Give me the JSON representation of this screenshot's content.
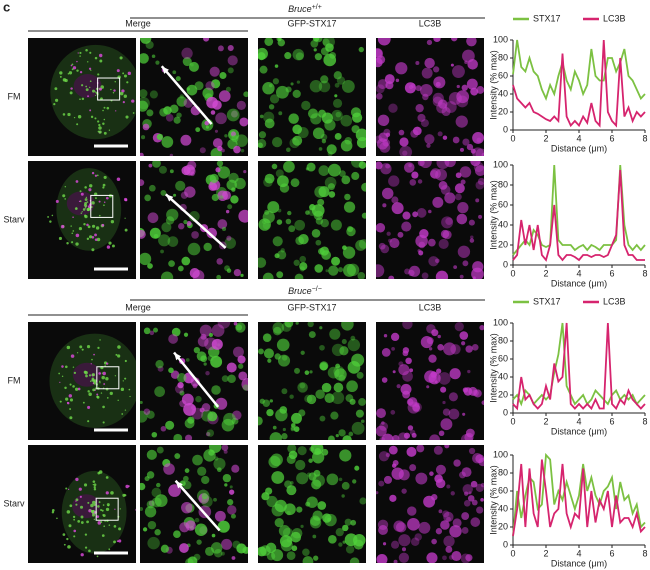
{
  "figure": {
    "panel_label": "c",
    "sections": [
      {
        "gene": "Bruce",
        "allele": "+/+",
        "columns": [
          "Merge",
          "GFP-STX17",
          "LC3B"
        ],
        "rows": [
          "FM",
          "Starv"
        ]
      },
      {
        "gene": "Bruce",
        "allele": "−/−",
        "columns": [
          "Merge",
          "GFP-STX17",
          "LC3B"
        ],
        "rows": [
          "FM",
          "Starv"
        ]
      }
    ]
  },
  "chart_data": [
    {
      "type": "line",
      "xlabel": "Distance (μm)",
      "ylabel": "Intensity (% max)",
      "legend": true,
      "x": [
        0,
        0.25,
        0.5,
        0.75,
        1,
        1.25,
        1.5,
        1.75,
        2,
        2.25,
        2.5,
        2.75,
        3,
        3.25,
        3.5,
        3.75,
        4,
        4.25,
        4.5,
        4.75,
        5,
        5.25,
        5.5,
        5.75,
        6,
        6.25,
        6.5,
        6.75,
        7,
        7.25,
        7.5,
        7.75,
        8
      ],
      "xlim": [
        0,
        8
      ],
      "xticks": [
        0,
        2,
        4,
        6,
        8
      ],
      "ylim": [
        0,
        100
      ],
      "yticks": [
        0,
        20,
        40,
        60,
        80,
        100
      ],
      "series": [
        {
          "name": "STX17",
          "color": "#7cc142",
          "values": [
            62,
            100,
            70,
            65,
            80,
            65,
            60,
            45,
            35,
            50,
            40,
            60,
            75,
            55,
            45,
            65,
            55,
            40,
            50,
            90,
            60,
            55,
            55,
            80,
            80,
            65,
            75,
            90,
            60,
            55,
            45,
            35,
            40
          ]
        },
        {
          "name": "LC3B",
          "color": "#d6246e",
          "values": [
            50,
            35,
            30,
            25,
            30,
            20,
            18,
            15,
            12,
            10,
            15,
            10,
            85,
            15,
            5,
            10,
            5,
            15,
            8,
            30,
            10,
            5,
            100,
            20,
            10,
            5,
            80,
            15,
            25,
            10,
            20,
            15,
            20
          ]
        }
      ]
    },
    {
      "type": "line",
      "xlabel": "Distance (μm)",
      "ylabel": "Intensity (% max)",
      "legend": false,
      "x": [
        0,
        0.25,
        0.5,
        0.75,
        1,
        1.25,
        1.5,
        1.75,
        2,
        2.25,
        2.5,
        2.75,
        3,
        3.25,
        3.5,
        3.75,
        4,
        4.25,
        4.5,
        4.75,
        5,
        5.25,
        5.5,
        5.75,
        6,
        6.25,
        6.5,
        6.75,
        7,
        7.25,
        7.5,
        7.75,
        8
      ],
      "xlim": [
        0,
        8
      ],
      "xticks": [
        0,
        2,
        4,
        6,
        8
      ],
      "ylim": [
        0,
        100
      ],
      "yticks": [
        0,
        20,
        40,
        60,
        80,
        100
      ],
      "series": [
        {
          "name": "STX17",
          "color": "#7cc142",
          "values": [
            10,
            15,
            20,
            25,
            20,
            35,
            30,
            20,
            18,
            20,
            100,
            25,
            20,
            20,
            20,
            15,
            18,
            20,
            15,
            20,
            18,
            15,
            20,
            20,
            20,
            25,
            100,
            40,
            20,
            15,
            20,
            15,
            20
          ]
        },
        {
          "name": "LC3B",
          "color": "#d6246e",
          "values": [
            5,
            10,
            45,
            20,
            40,
            15,
            40,
            10,
            5,
            20,
            60,
            10,
            5,
            10,
            10,
            8,
            5,
            10,
            10,
            8,
            10,
            10,
            8,
            10,
            20,
            30,
            95,
            20,
            10,
            10,
            5,
            5,
            5
          ]
        }
      ]
    },
    {
      "type": "line",
      "xlabel": "Distance (μm)",
      "ylabel": "Intensity (% max)",
      "legend": true,
      "x": [
        0,
        0.25,
        0.5,
        0.75,
        1,
        1.25,
        1.5,
        1.75,
        2,
        2.25,
        2.5,
        2.75,
        3,
        3.25,
        3.5,
        3.75,
        4,
        4.25,
        4.5,
        4.75,
        5,
        5.25,
        5.5,
        5.75,
        6,
        6.25,
        6.5,
        6.75,
        7,
        7.25,
        7.5,
        7.75,
        8
      ],
      "xlim": [
        0,
        8
      ],
      "xticks": [
        0,
        2,
        4,
        6,
        8
      ],
      "ylim": [
        0,
        100
      ],
      "yticks": [
        0,
        20,
        40,
        60,
        80,
        100
      ],
      "series": [
        {
          "name": "STX17",
          "color": "#7cc142",
          "values": [
            15,
            20,
            10,
            25,
            20,
            10,
            15,
            20,
            15,
            20,
            45,
            65,
            100,
            30,
            20,
            10,
            15,
            20,
            10,
            15,
            25,
            20,
            15,
            10,
            20,
            25,
            15,
            20,
            15,
            20,
            10,
            15,
            20
          ]
        },
        {
          "name": "LC3B",
          "color": "#d6246e",
          "values": [
            10,
            5,
            40,
            15,
            20,
            10,
            5,
            10,
            30,
            15,
            55,
            35,
            40,
            100,
            10,
            5,
            10,
            5,
            10,
            5,
            15,
            5,
            5,
            100,
            10,
            5,
            15,
            10,
            25,
            15,
            10,
            5,
            10
          ]
        }
      ]
    },
    {
      "type": "line",
      "xlabel": "Distance (μm)",
      "ylabel": "Intensity (% max)",
      "legend": false,
      "x": [
        0,
        0.25,
        0.5,
        0.75,
        1,
        1.25,
        1.5,
        1.75,
        2,
        2.25,
        2.5,
        2.75,
        3,
        3.25,
        3.5,
        3.75,
        4,
        4.25,
        4.5,
        4.75,
        5,
        5.25,
        5.5,
        5.75,
        6,
        6.25,
        6.5,
        6.75,
        7,
        7.25,
        7.5,
        7.75,
        8
      ],
      "xlim": [
        0,
        8
      ],
      "xticks": [
        0,
        2,
        4,
        6,
        8
      ],
      "ylim": [
        0,
        100
      ],
      "yticks": [
        0,
        20,
        40,
        60,
        80,
        100
      ],
      "series": [
        {
          "name": "STX17",
          "color": "#7cc142",
          "values": [
            10,
            60,
            30,
            55,
            75,
            70,
            40,
            45,
            100,
            95,
            45,
            60,
            50,
            70,
            55,
            40,
            55,
            90,
            60,
            75,
            55,
            45,
            60,
            65,
            75,
            40,
            70,
            50,
            55,
            35,
            45,
            20,
            25
          ]
        },
        {
          "name": "LC3B",
          "color": "#d6246e",
          "values": [
            10,
            40,
            90,
            20,
            85,
            35,
            20,
            95,
            60,
            20,
            35,
            40,
            90,
            35,
            20,
            35,
            30,
            85,
            20,
            60,
            25,
            50,
            40,
            60,
            20,
            55,
            25,
            30,
            30,
            20,
            35,
            15,
            20
          ]
        }
      ]
    }
  ]
}
